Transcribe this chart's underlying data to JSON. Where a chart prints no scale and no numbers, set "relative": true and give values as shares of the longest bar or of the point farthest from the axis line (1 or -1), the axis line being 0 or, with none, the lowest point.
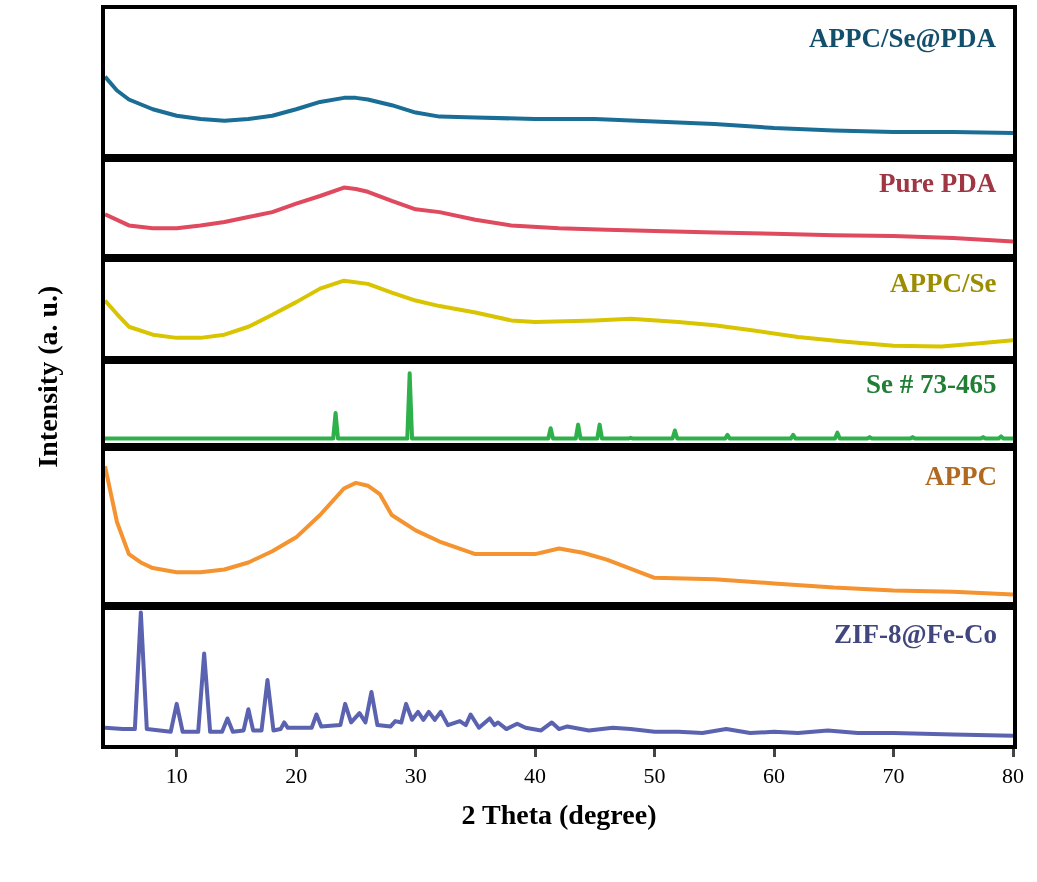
{
  "chart_data": [
    {
      "type": "line",
      "relative": true,
      "ylabel": "Intensity (a. u.)",
      "xlim": [
        4,
        80
      ],
      "xticks": [
        10,
        20,
        30,
        40,
        50,
        60,
        70,
        80
      ],
      "tick_labels": false,
      "x": [
        4,
        5,
        6,
        8,
        10,
        12,
        14,
        16,
        18,
        20,
        22,
        24,
        25,
        26,
        28,
        30,
        32,
        35,
        40,
        45,
        50,
        55,
        60,
        65,
        70,
        75,
        80
      ],
      "series": [
        {
          "name": "APPC/Se@PDA",
          "color": "#1a6e96",
          "values": [
            1.0,
            0.83,
            0.72,
            0.6,
            0.52,
            0.48,
            0.46,
            0.48,
            0.52,
            0.6,
            0.69,
            0.74,
            0.74,
            0.72,
            0.65,
            0.56,
            0.51,
            0.5,
            0.48,
            0.48,
            0.45,
            0.42,
            0.37,
            0.34,
            0.32,
            0.32,
            0.31
          ]
        }
      ]
    },
    {
      "type": "line",
      "relative": true,
      "xlim": [
        4,
        80
      ],
      "xticks": [
        10,
        20,
        30,
        40,
        50,
        60,
        70,
        80
      ],
      "tick_labels": false,
      "x": [
        4,
        6,
        8,
        10,
        12,
        14,
        16,
        18,
        20,
        22,
        24,
        25,
        26,
        28,
        30,
        32,
        35,
        38,
        42,
        46,
        50,
        55,
        60,
        65,
        70,
        75,
        80
      ],
      "series": [
        {
          "name": "Pure PDA",
          "color": "#df4a5e",
          "values": [
            0.62,
            0.46,
            0.42,
            0.42,
            0.46,
            0.51,
            0.58,
            0.65,
            0.77,
            0.88,
            1.0,
            0.98,
            0.94,
            0.81,
            0.69,
            0.65,
            0.54,
            0.46,
            0.42,
            0.4,
            0.38,
            0.36,
            0.34,
            0.32,
            0.31,
            0.28,
            0.23
          ]
        }
      ]
    },
    {
      "type": "line",
      "relative": true,
      "xlim": [
        4,
        80
      ],
      "xticks": [
        10,
        20,
        30,
        40,
        50,
        60,
        70,
        80
      ],
      "tick_labels": false,
      "x": [
        4,
        5,
        6,
        8,
        10,
        12,
        14,
        16,
        18,
        20,
        22,
        24,
        26,
        28,
        30,
        32,
        35,
        38,
        40,
        45,
        48,
        52,
        55,
        58,
        62,
        66,
        70,
        74,
        77,
        80
      ],
      "series": [
        {
          "name": "APPC/Se",
          "color": "#d9c400",
          "values": [
            0.75,
            0.58,
            0.42,
            0.32,
            0.28,
            0.28,
            0.32,
            0.42,
            0.57,
            0.73,
            0.9,
            1.0,
            0.96,
            0.85,
            0.75,
            0.68,
            0.6,
            0.5,
            0.48,
            0.5,
            0.52,
            0.48,
            0.44,
            0.38,
            0.29,
            0.23,
            0.18,
            0.17,
            0.21,
            0.25
          ]
        }
      ]
    },
    {
      "type": "line",
      "relative": true,
      "xlim": [
        4,
        80
      ],
      "xticks": [
        10,
        20,
        30,
        40,
        50,
        60,
        70,
        80
      ],
      "tick_labels": false,
      "x": [
        4,
        23.1,
        23.3,
        23.5,
        29.3,
        29.5,
        29.7,
        41.1,
        41.3,
        41.5,
        43.4,
        43.6,
        43.8,
        45.2,
        45.4,
        45.6,
        47.8,
        48.0,
        48.2,
        51.5,
        51.7,
        51.9,
        55.9,
        56.1,
        56.3,
        61.4,
        61.6,
        61.8,
        65.1,
        65.3,
        65.5,
        67.8,
        68.0,
        68.2,
        71.4,
        71.6,
        71.8,
        77.3,
        77.5,
        77.7,
        78.8,
        79.0,
        79.2,
        80
      ],
      "series": [
        {
          "name": "Se # 73-465",
          "color": "#2eb04b",
          "values": [
            0.11,
            0.11,
            0.46,
            0.11,
            0.11,
            1.0,
            0.11,
            0.11,
            0.25,
            0.11,
            0.11,
            0.3,
            0.11,
            0.11,
            0.3,
            0.11,
            0.11,
            0.12,
            0.11,
            0.11,
            0.22,
            0.11,
            0.11,
            0.16,
            0.11,
            0.11,
            0.16,
            0.11,
            0.11,
            0.19,
            0.11,
            0.11,
            0.13,
            0.11,
            0.11,
            0.13,
            0.11,
            0.11,
            0.13,
            0.11,
            0.11,
            0.14,
            0.11,
            0.11
          ]
        }
      ]
    },
    {
      "type": "line",
      "relative": true,
      "xlim": [
        4,
        80
      ],
      "xticks": [
        10,
        20,
        30,
        40,
        50,
        60,
        70,
        80
      ],
      "tick_labels": false,
      "x": [
        4,
        5,
        6,
        7,
        8,
        10,
        12,
        14,
        16,
        18,
        20,
        22,
        24,
        25,
        26,
        27,
        28,
        30,
        32,
        35,
        38,
        40,
        42,
        44,
        46,
        50,
        55,
        60,
        65,
        70,
        75,
        80
      ],
      "series": [
        {
          "name": "APPC",
          "color": "#f4932f",
          "values": [
            1.0,
            0.6,
            0.37,
            0.31,
            0.27,
            0.24,
            0.24,
            0.26,
            0.31,
            0.39,
            0.49,
            0.65,
            0.84,
            0.88,
            0.86,
            0.8,
            0.65,
            0.54,
            0.46,
            0.37,
            0.37,
            0.37,
            0.41,
            0.38,
            0.33,
            0.2,
            0.19,
            0.16,
            0.13,
            0.11,
            0.1,
            0.08
          ]
        }
      ]
    },
    {
      "type": "line",
      "relative": true,
      "xlabel": "2 Theta (degree)",
      "xlim": [
        4,
        80
      ],
      "xticks": [
        10,
        20,
        30,
        40,
        50,
        60,
        70,
        80
      ],
      "tick_labels": "x",
      "x": [
        4,
        5.5,
        6.5,
        7.0,
        7.5,
        9.5,
        10.0,
        10.5,
        11.8,
        12.3,
        12.8,
        13.8,
        14.25,
        14.7,
        15.6,
        16.0,
        16.4,
        17.1,
        17.6,
        18.1,
        18.7,
        19.0,
        19.3,
        21.3,
        21.7,
        22.1,
        23.7,
        24.1,
        24.6,
        25.3,
        25.8,
        26.3,
        26.8,
        27.9,
        28.3,
        28.8,
        29.2,
        29.7,
        30.2,
        30.65,
        31.1,
        31.6,
        32.1,
        32.7,
        33.7,
        34.2,
        34.6,
        35.3,
        36.2,
        36.6,
        36.9,
        37.6,
        38.5,
        39.2,
        40.5,
        41.4,
        42.0,
        42.7,
        44.5,
        46.5,
        48,
        50,
        52,
        54,
        56,
        58,
        60,
        62,
        64.5,
        67,
        70,
        75,
        80
      ],
      "series": [
        {
          "name": "ZIF-8@Fe-Co",
          "color": "#5b63b0",
          "values": [
            0.13,
            0.12,
            0.12,
            1.0,
            0.12,
            0.1,
            0.31,
            0.1,
            0.1,
            0.69,
            0.1,
            0.1,
            0.2,
            0.1,
            0.11,
            0.27,
            0.11,
            0.11,
            0.49,
            0.11,
            0.12,
            0.17,
            0.13,
            0.13,
            0.23,
            0.14,
            0.15,
            0.31,
            0.17,
            0.24,
            0.17,
            0.4,
            0.15,
            0.14,
            0.18,
            0.17,
            0.31,
            0.19,
            0.25,
            0.19,
            0.25,
            0.19,
            0.25,
            0.15,
            0.18,
            0.15,
            0.23,
            0.13,
            0.2,
            0.15,
            0.17,
            0.12,
            0.16,
            0.13,
            0.11,
            0.17,
            0.12,
            0.14,
            0.11,
            0.13,
            0.12,
            0.1,
            0.1,
            0.09,
            0.12,
            0.09,
            0.1,
            0.09,
            0.11,
            0.09,
            0.09,
            0.08,
            0.07
          ]
        }
      ]
    }
  ]
}
